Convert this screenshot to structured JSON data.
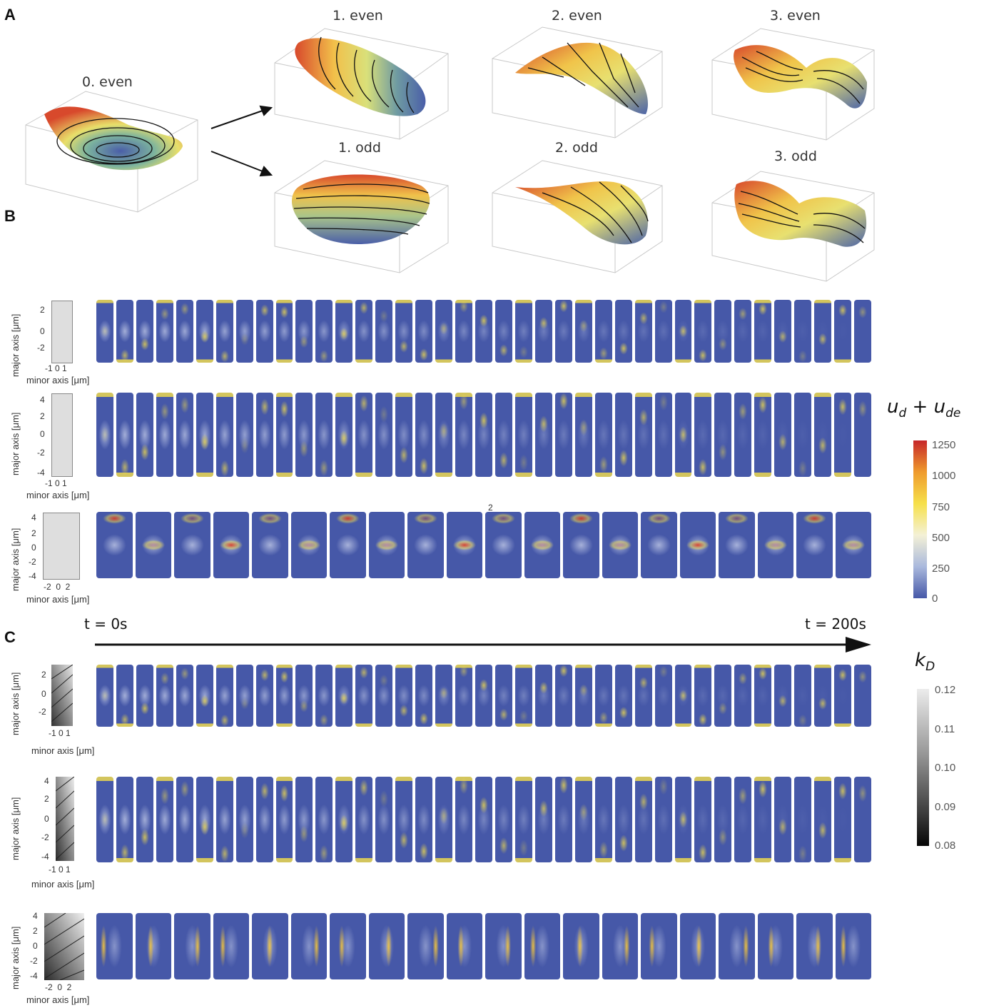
{
  "panel_letters": [
    "A",
    "B",
    "C"
  ],
  "panelA": {
    "labels": [
      "0. even",
      "1. even",
      "2. even",
      "3. even",
      "1. odd",
      "2. odd",
      "3. odd"
    ]
  },
  "panelB": {
    "rows": [
      {
        "ylabel": "major axis [μm]",
        "xlabel": "minor axis [μm]",
        "yticks": [
          "2",
          "0",
          "-2"
        ],
        "xticks": "-1 0 1"
      },
      {
        "ylabel": "major axis [μm]",
        "xlabel": "minor axis [μm]",
        "yticks": [
          "4",
          "2",
          "0",
          "-2",
          "-4"
        ],
        "xticks": "-1 0 1"
      },
      {
        "ylabel": "major axis [μm]",
        "xlabel": "minor axis [μm]",
        "yticks": [
          "4",
          "2",
          "0",
          "-2",
          "-4"
        ],
        "xticks": "-2  0  2",
        "marker": "2"
      }
    ]
  },
  "panelC": {
    "rows": [
      {
        "ylabel": "major axis [μm]",
        "xlabel": "minor axis [μm]",
        "yticks": [
          "2",
          "0",
          "-2"
        ],
        "xticks": "-1 0 1"
      },
      {
        "ylabel": "major axis [μm]",
        "xlabel": "minor axis [μm]",
        "yticks": [
          "4",
          "2",
          "0",
          "-2",
          "-4"
        ],
        "xticks": "-1 0 1"
      },
      {
        "ylabel": "major axis [μm]",
        "xlabel": "minor axis [μm]",
        "yticks": [
          "4",
          "2",
          "0",
          "-2",
          "-4"
        ],
        "xticks": "-2  0  2"
      }
    ]
  },
  "time_axis": {
    "start": "t = 0s",
    "end": "t = 200s"
  },
  "colorbar_u": {
    "title_main": "u",
    "title_sub1": "d",
    "plus": " + ",
    "title_sub2": "de",
    "ticks": [
      "1250",
      "1000",
      "750",
      "500",
      "250",
      "0"
    ],
    "colors": [
      "#c6262a",
      "#ef9b2d",
      "#f6e04a",
      "#f4f1d6",
      "#aab9dd",
      "#4658a8"
    ]
  },
  "colorbar_k": {
    "title_main": "k",
    "title_sub": "D",
    "ticks": [
      "0.12",
      "0.11",
      "0.10",
      "0.09",
      "0.08"
    ]
  }
}
